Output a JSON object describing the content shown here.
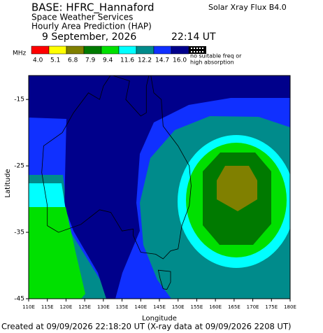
{
  "header": {
    "base": "BASE: HFRC_Hannaford",
    "org": "Space Weather Services",
    "product": "Hourly Area Prediction (HAP)",
    "date": "9 September, 2026",
    "time": "22:14 UT",
    "xray": "Solar Xray Flux B4.0"
  },
  "legend": {
    "unit": "MHz",
    "items": [
      {
        "label": "4.0",
        "color": "#ff0000"
      },
      {
        "label": "5.1",
        "color": "#ffff00"
      },
      {
        "label": "6.8",
        "color": "#808000"
      },
      {
        "label": "7.9",
        "color": "#007a00"
      },
      {
        "label": "9.4",
        "color": "#00e000"
      },
      {
        "label": "11.6",
        "color": "#00ffff"
      },
      {
        "label": "12.2",
        "color": "#008b8b"
      },
      {
        "label": "14.7",
        "color": "#1030ff"
      },
      {
        "label": "16.0",
        "color": "#00008b"
      }
    ],
    "no_freq": [
      "no suitable freq or",
      "high absorption"
    ]
  },
  "map": {
    "xlabel": "Longitude",
    "ylabel": "Latitude",
    "xlim": [
      110,
      180
    ],
    "ylim": [
      -45,
      -11.4
    ],
    "xticks": [
      {
        "value": 110,
        "label": "110E"
      },
      {
        "value": 115,
        "label": "115E"
      },
      {
        "value": 120,
        "label": "120E"
      },
      {
        "value": 125,
        "label": "125E"
      },
      {
        "value": 130,
        "label": "130E"
      },
      {
        "value": 135,
        "label": "135E"
      },
      {
        "value": 140,
        "label": "140E"
      },
      {
        "value": 145,
        "label": "145E"
      },
      {
        "value": 150,
        "label": "150E"
      },
      {
        "value": 155,
        "label": "155E"
      },
      {
        "value": 160,
        "label": "160E"
      },
      {
        "value": 165,
        "label": "165E"
      },
      {
        "value": 170,
        "label": "170E"
      },
      {
        "value": 175,
        "label": "175E"
      },
      {
        "value": 180,
        "label": "180E"
      }
    ],
    "yticks": [
      -15,
      -25,
      -35,
      -45
    ]
  },
  "footer": "Created at 09/09/2026 22:18:20 UT (X-ray data at 09/09/2026 2208 UT)"
}
